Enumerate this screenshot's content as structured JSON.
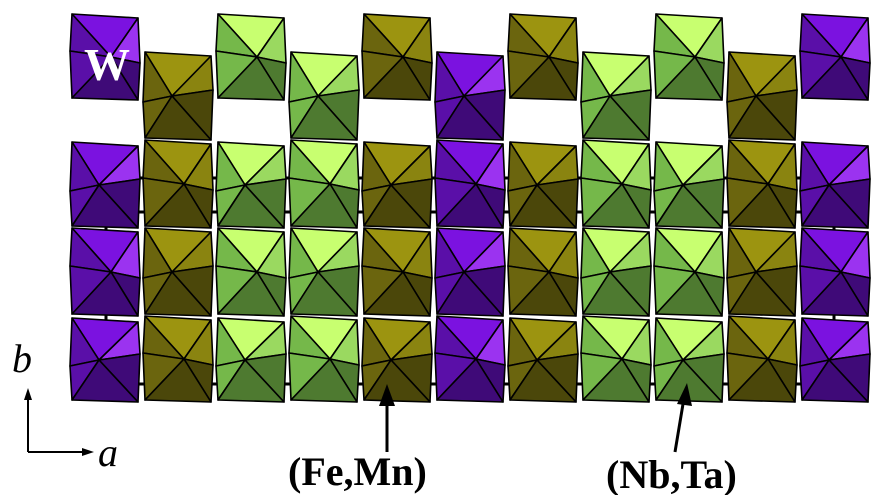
{
  "labels": {
    "w_site": "W",
    "fe_mn_site": "(Fe,Mn)",
    "nb_ta_site": "(Nb,Ta)",
    "axis_b": "b",
    "axis_a": "a"
  },
  "colors": {
    "w": [
      "#7B12E0",
      "#9B33F0",
      "#5A0FA8",
      "#3F0A78"
    ],
    "femn": [
      "#9C9410",
      "#8A8410",
      "#6B650E",
      "#4B470A"
    ],
    "nbta": [
      "#C8FF70",
      "#9AD960",
      "#75B84A",
      "#4E7A30"
    ],
    "edge": "#000000"
  },
  "columns": [
    "w",
    "femn",
    "nbta",
    "nbta",
    "femn",
    "w",
    "femn",
    "nbta",
    "nbta",
    "femn",
    "w"
  ]
}
